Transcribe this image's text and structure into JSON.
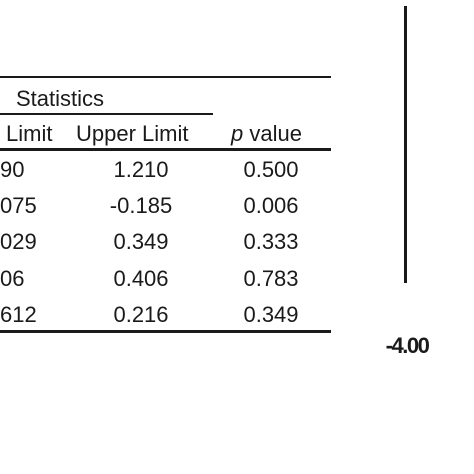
{
  "chart_data": {
    "type": "table",
    "group_header": "Statistics",
    "columns": [
      {
        "label": "Limit"
      },
      {
        "label": "Upper Limit"
      },
      {
        "label_prefix": "p",
        "label": "value"
      }
    ],
    "rows": [
      [
        "90",
        "1.210",
        "0.500"
      ],
      [
        "075",
        "-0.185",
        "0.006"
      ],
      [
        "029",
        "0.349",
        "0.333"
      ],
      [
        "06",
        "0.406",
        "0.783"
      ],
      [
        "612",
        "0.216",
        "0.349"
      ]
    ]
  },
  "forest_plot": {
    "axis_tick_label": "-4.00"
  }
}
